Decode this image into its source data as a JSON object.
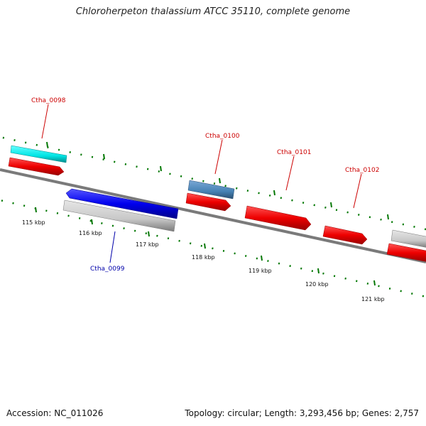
{
  "title": "Chloroherpeton thalassium ATCC 35110, complete genome",
  "footer": {
    "accession": "Accession: NC_011026",
    "summary": "Topology: circular; Length: 3,293,456 bp; Genes: 2,757"
  },
  "scale_labels": [
    "115 kbp",
    "116 kbp",
    "117 kbp",
    "118 kbp",
    "119 kbp",
    "120 kbp",
    "121 kbp"
  ],
  "genes": [
    {
      "id": "Ctha_0098",
      "label": "Ctha_0098",
      "strand": "+",
      "label_color": "#cc0000"
    },
    {
      "id": "Ctha_0099",
      "label": "Ctha_0099",
      "strand": "-",
      "label_color": "#0000aa"
    },
    {
      "id": "Ctha_0100",
      "label": "Ctha_0100",
      "strand": "+",
      "label_color": "#cc0000"
    },
    {
      "id": "Ctha_0101",
      "label": "Ctha_0101",
      "strand": "+",
      "label_color": "#cc0000"
    },
    {
      "id": "Ctha_0102",
      "label": "Ctha_0102",
      "strand": "+",
      "label_color": "#cc0000"
    }
  ],
  "colors": {
    "forward_gene": "#ee0000",
    "reverse_gene": "#0000ee",
    "cds_cyan": "#00e5e5",
    "cds_steelblue": "#4682b4",
    "grey_feature": "#c8c8c8",
    "backbone": "#808080",
    "tick": "#007700"
  }
}
